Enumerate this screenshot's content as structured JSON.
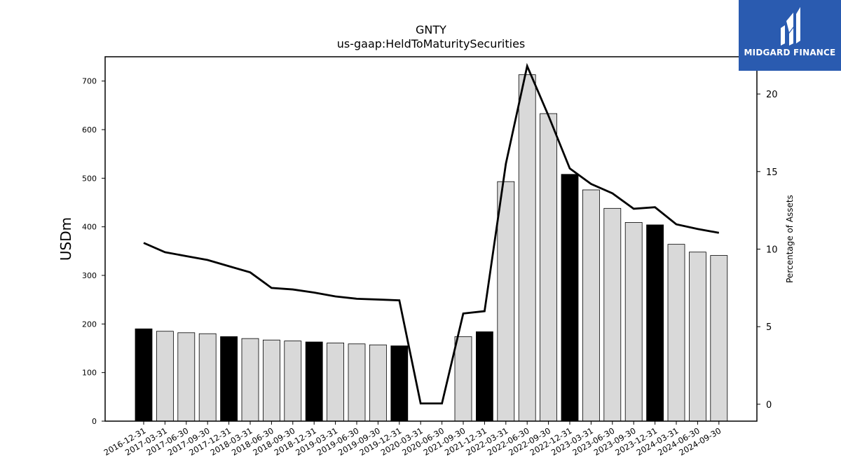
{
  "chart_data": {
    "type": "bar",
    "title": "GNTY",
    "subtitle": "us-gaap:HeldToMaturitySecurities",
    "ylabel": "USDm",
    "ylabel_right": "Percentage of Assets",
    "ylim": [
      0,
      750
    ],
    "ylim_right": [
      -1.09,
      22.4
    ],
    "yticks": [
      0,
      100,
      200,
      300,
      400,
      500,
      600,
      700
    ],
    "yticks_right": [
      0,
      5,
      10,
      15,
      20
    ],
    "categories": [
      "2016-12-31",
      "2017-03-31",
      "2017-06-30",
      "2017-09-30",
      "2017-12-31",
      "2018-03-31",
      "2018-06-30",
      "2018-09-30",
      "2018-12-31",
      "2019-03-31",
      "2019-06-30",
      "2019-09-30",
      "2019-12-31",
      "2020-03-31",
      "2020-06-30",
      "2021-09-30",
      "2021-12-31",
      "2022-03-31",
      "2022-06-30",
      "2022-09-30",
      "2022-12-31",
      "2023-03-31",
      "2023-06-30",
      "2023-09-30",
      "2023-12-31",
      "2024-03-31",
      "2024-06-30",
      "2024-09-30"
    ],
    "series": [
      {
        "type": "bar",
        "values": [
          190,
          185,
          182,
          180,
          174,
          170,
          167,
          165,
          163,
          161,
          159,
          157,
          155,
          0,
          0,
          174,
          184,
          493,
          713,
          633,
          508,
          476,
          438,
          409,
          404,
          364,
          348,
          341
        ],
        "highlight": [
          true,
          false,
          false,
          false,
          true,
          false,
          false,
          false,
          true,
          false,
          false,
          false,
          true,
          false,
          false,
          false,
          true,
          false,
          false,
          false,
          true,
          false,
          false,
          false,
          true,
          false,
          false,
          false
        ]
      },
      {
        "type": "line",
        "axis": "right",
        "values": [
          10.4,
          9.8,
          9.55,
          9.3,
          8.9,
          8.5,
          7.5,
          7.4,
          7.2,
          6.95,
          6.8,
          6.75,
          6.7,
          0.05,
          0.05,
          5.85,
          6.0,
          15.5,
          21.8,
          18.6,
          15.2,
          14.2,
          13.6,
          12.6,
          12.7,
          11.6,
          11.3,
          11.05
        ]
      }
    ],
    "colors": {
      "bar": "#d9d9d9",
      "bar_highlight": "#000000",
      "line": "#000000",
      "logo_bg": "#2a5bb0"
    }
  },
  "logo": {
    "text": "MIDGARD FINANCE"
  }
}
